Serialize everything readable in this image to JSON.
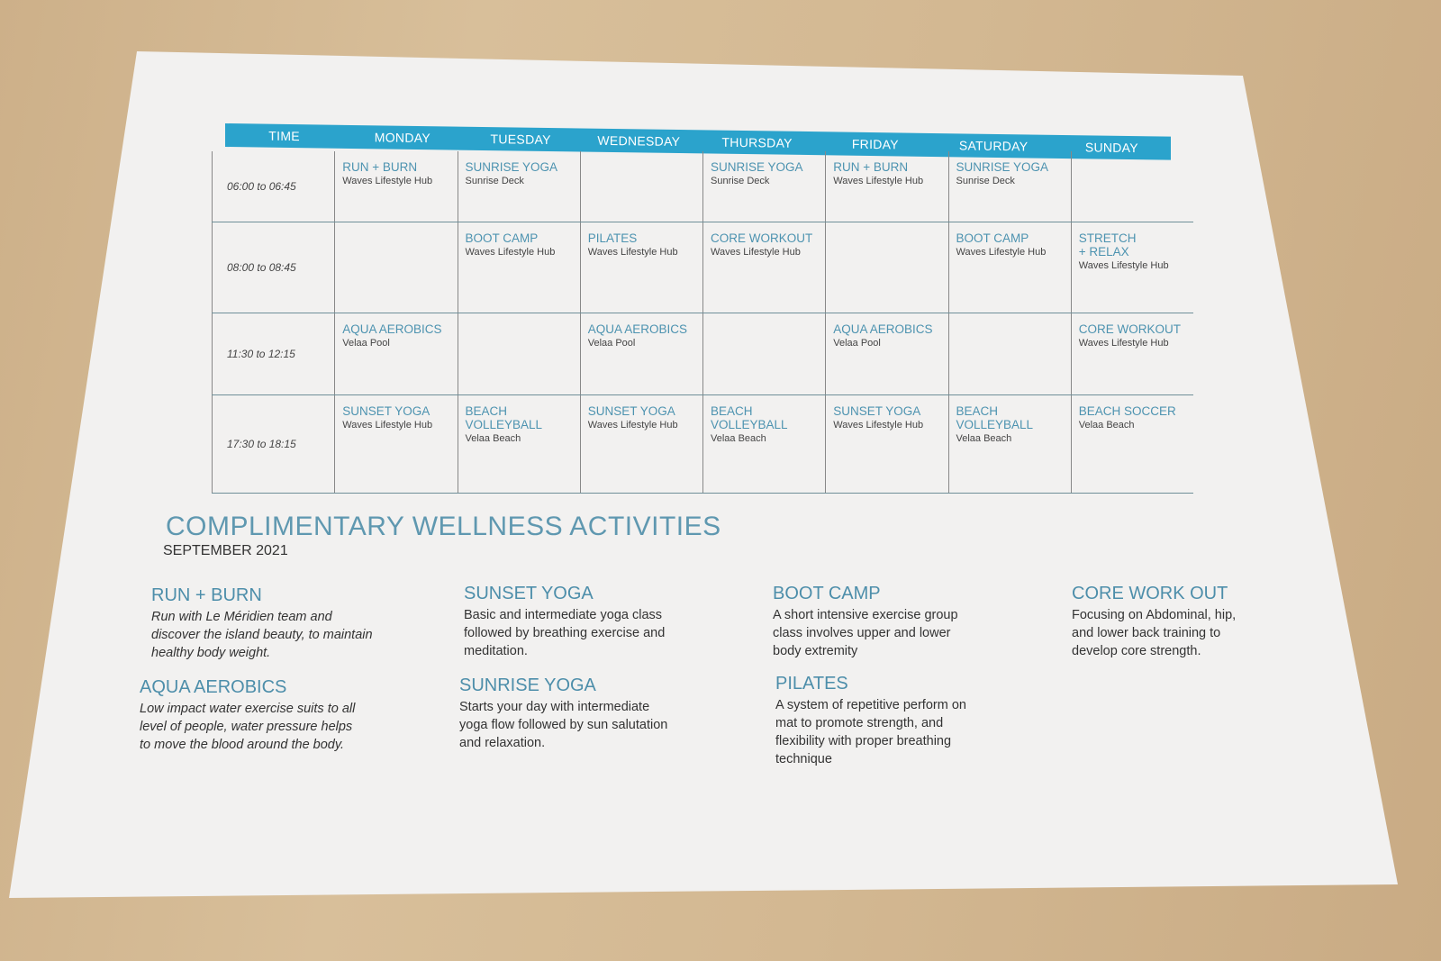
{
  "schedule": {
    "headers": [
      "TIME",
      "MONDAY",
      "TUESDAY",
      "WEDNESDAY",
      "THURSDAY",
      "FRIDAY",
      "SATURDAY",
      "SUNDAY"
    ],
    "rows": [
      {
        "time": "06:00 to 06:45",
        "cells": [
          {
            "activity": "RUN + BURN",
            "location": "Waves Lifestyle Hub"
          },
          {
            "activity": "SUNRISE YOGA",
            "location": "Sunrise Deck"
          },
          null,
          {
            "activity": "SUNRISE YOGA",
            "location": "Sunrise Deck"
          },
          {
            "activity": "RUN + BURN",
            "location": "Waves Lifestyle Hub"
          },
          {
            "activity": "SUNRISE YOGA",
            "location": "Sunrise Deck"
          },
          null
        ]
      },
      {
        "time": "08:00 to 08:45",
        "cells": [
          null,
          {
            "activity": "BOOT CAMP",
            "location": "Waves Lifestyle Hub"
          },
          {
            "activity": "PILATES",
            "location": "Waves Lifestyle Hub"
          },
          {
            "activity": "CORE WORKOUT",
            "location": "Waves Lifestyle Hub"
          },
          null,
          {
            "activity": "BOOT CAMP",
            "location": "Waves Lifestyle Hub"
          },
          {
            "activity": "STRETCH\n+ RELAX",
            "location": "Waves Lifestyle Hub"
          }
        ]
      },
      {
        "time": "11:30 to 12:15",
        "cells": [
          {
            "activity": "AQUA AEROBICS",
            "location": "Velaa Pool"
          },
          null,
          {
            "activity": "AQUA AEROBICS",
            "location": "Velaa Pool"
          },
          null,
          {
            "activity": "AQUA AEROBICS",
            "location": "Velaa Pool"
          },
          null,
          {
            "activity": "CORE WORKOUT",
            "location": "Waves Lifestyle Hub"
          }
        ]
      },
      {
        "time": "17:30 to 18:15",
        "cells": [
          {
            "activity": "SUNSET YOGA",
            "location": "Waves Lifestyle Hub"
          },
          {
            "activity": "BEACH\nVOLLEYBALL",
            "location": "Velaa Beach"
          },
          {
            "activity": "SUNSET YOGA",
            "location": "Waves Lifestyle Hub"
          },
          {
            "activity": "BEACH\nVOLLEYBALL",
            "location": "Velaa Beach"
          },
          {
            "activity": "SUNSET YOGA",
            "location": "Waves Lifestyle Hub"
          },
          {
            "activity": "BEACH\nVOLLEYBALL",
            "location": "Velaa Beach"
          },
          {
            "activity": "BEACH SOCCER",
            "location": "Velaa Beach"
          }
        ]
      }
    ]
  },
  "title": "COMPLIMENTARY WELLNESS ACTIVITIES",
  "subtitle": "SEPTEMBER 2021",
  "descriptions": [
    {
      "name": "RUN + BURN",
      "text": "Run with Le Méridien team and discover the island beauty, to maintain healthy body weight."
    },
    {
      "name": "AQUA AEROBICS",
      "text": "Low impact water exercise suits to all level of people, water pressure helps to move the blood around the body."
    },
    {
      "name": "SUNSET YOGA",
      "text": "Basic and intermediate yoga class followed by breathing exercise and meditation."
    },
    {
      "name": "SUNRISE YOGA",
      "text": "Starts your day with intermediate yoga flow followed by sun salutation and relaxation."
    },
    {
      "name": "BOOT CAMP",
      "text": "A short intensive exercise group class involves upper and lower body extremity"
    },
    {
      "name": "PILATES",
      "text": "A system of repetitive perform on mat to promote strength, and flexibility with proper breathing technique"
    },
    {
      "name": "CORE WORK OUT",
      "text": "Focusing on Abdominal, hip, and lower back training to develop core strength."
    }
  ],
  "colors": {
    "accent": "#2ba3cc",
    "activity_text": "#4d93b0",
    "paper": "#f2f1f0",
    "table_background": "#d3b892"
  }
}
